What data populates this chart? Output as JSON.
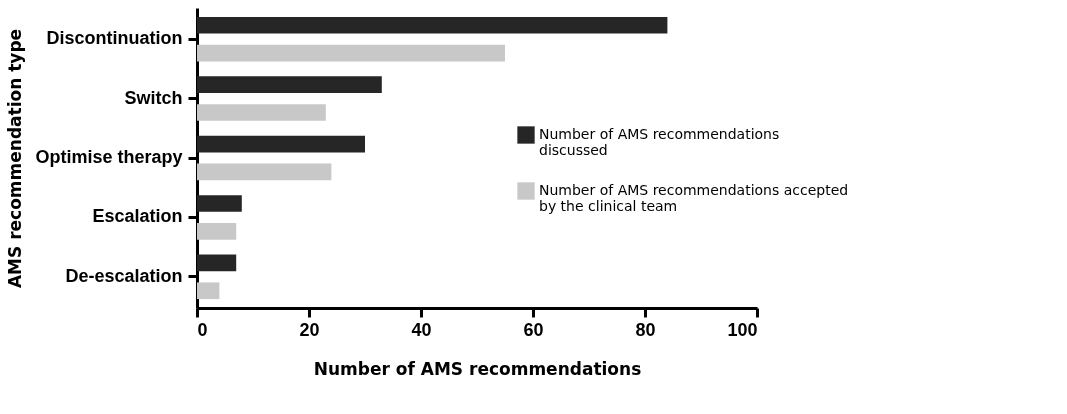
{
  "chart_data": {
    "type": "bar",
    "orientation": "horizontal",
    "xlabel": "Number of AMS recommendations",
    "ylabel": "AMS recommendation type",
    "categories": [
      "Discontinuation",
      "Switch",
      "Optimise therapy",
      "Escalation",
      "De-escalation"
    ],
    "series": [
      {
        "name": "Number of AMS recommendations discussed",
        "color": "#262626",
        "values": [
          84,
          33,
          30,
          8,
          7
        ]
      },
      {
        "name": "Number of AMS recommendations accepted by the clinical team",
        "color": "#c8c8c8",
        "values": [
          55,
          23,
          24,
          7,
          4
        ]
      }
    ],
    "xlim": [
      0,
      100
    ],
    "xticks": [
      0,
      20,
      40,
      60,
      80,
      100
    ],
    "grid": false,
    "legend": "right"
  }
}
